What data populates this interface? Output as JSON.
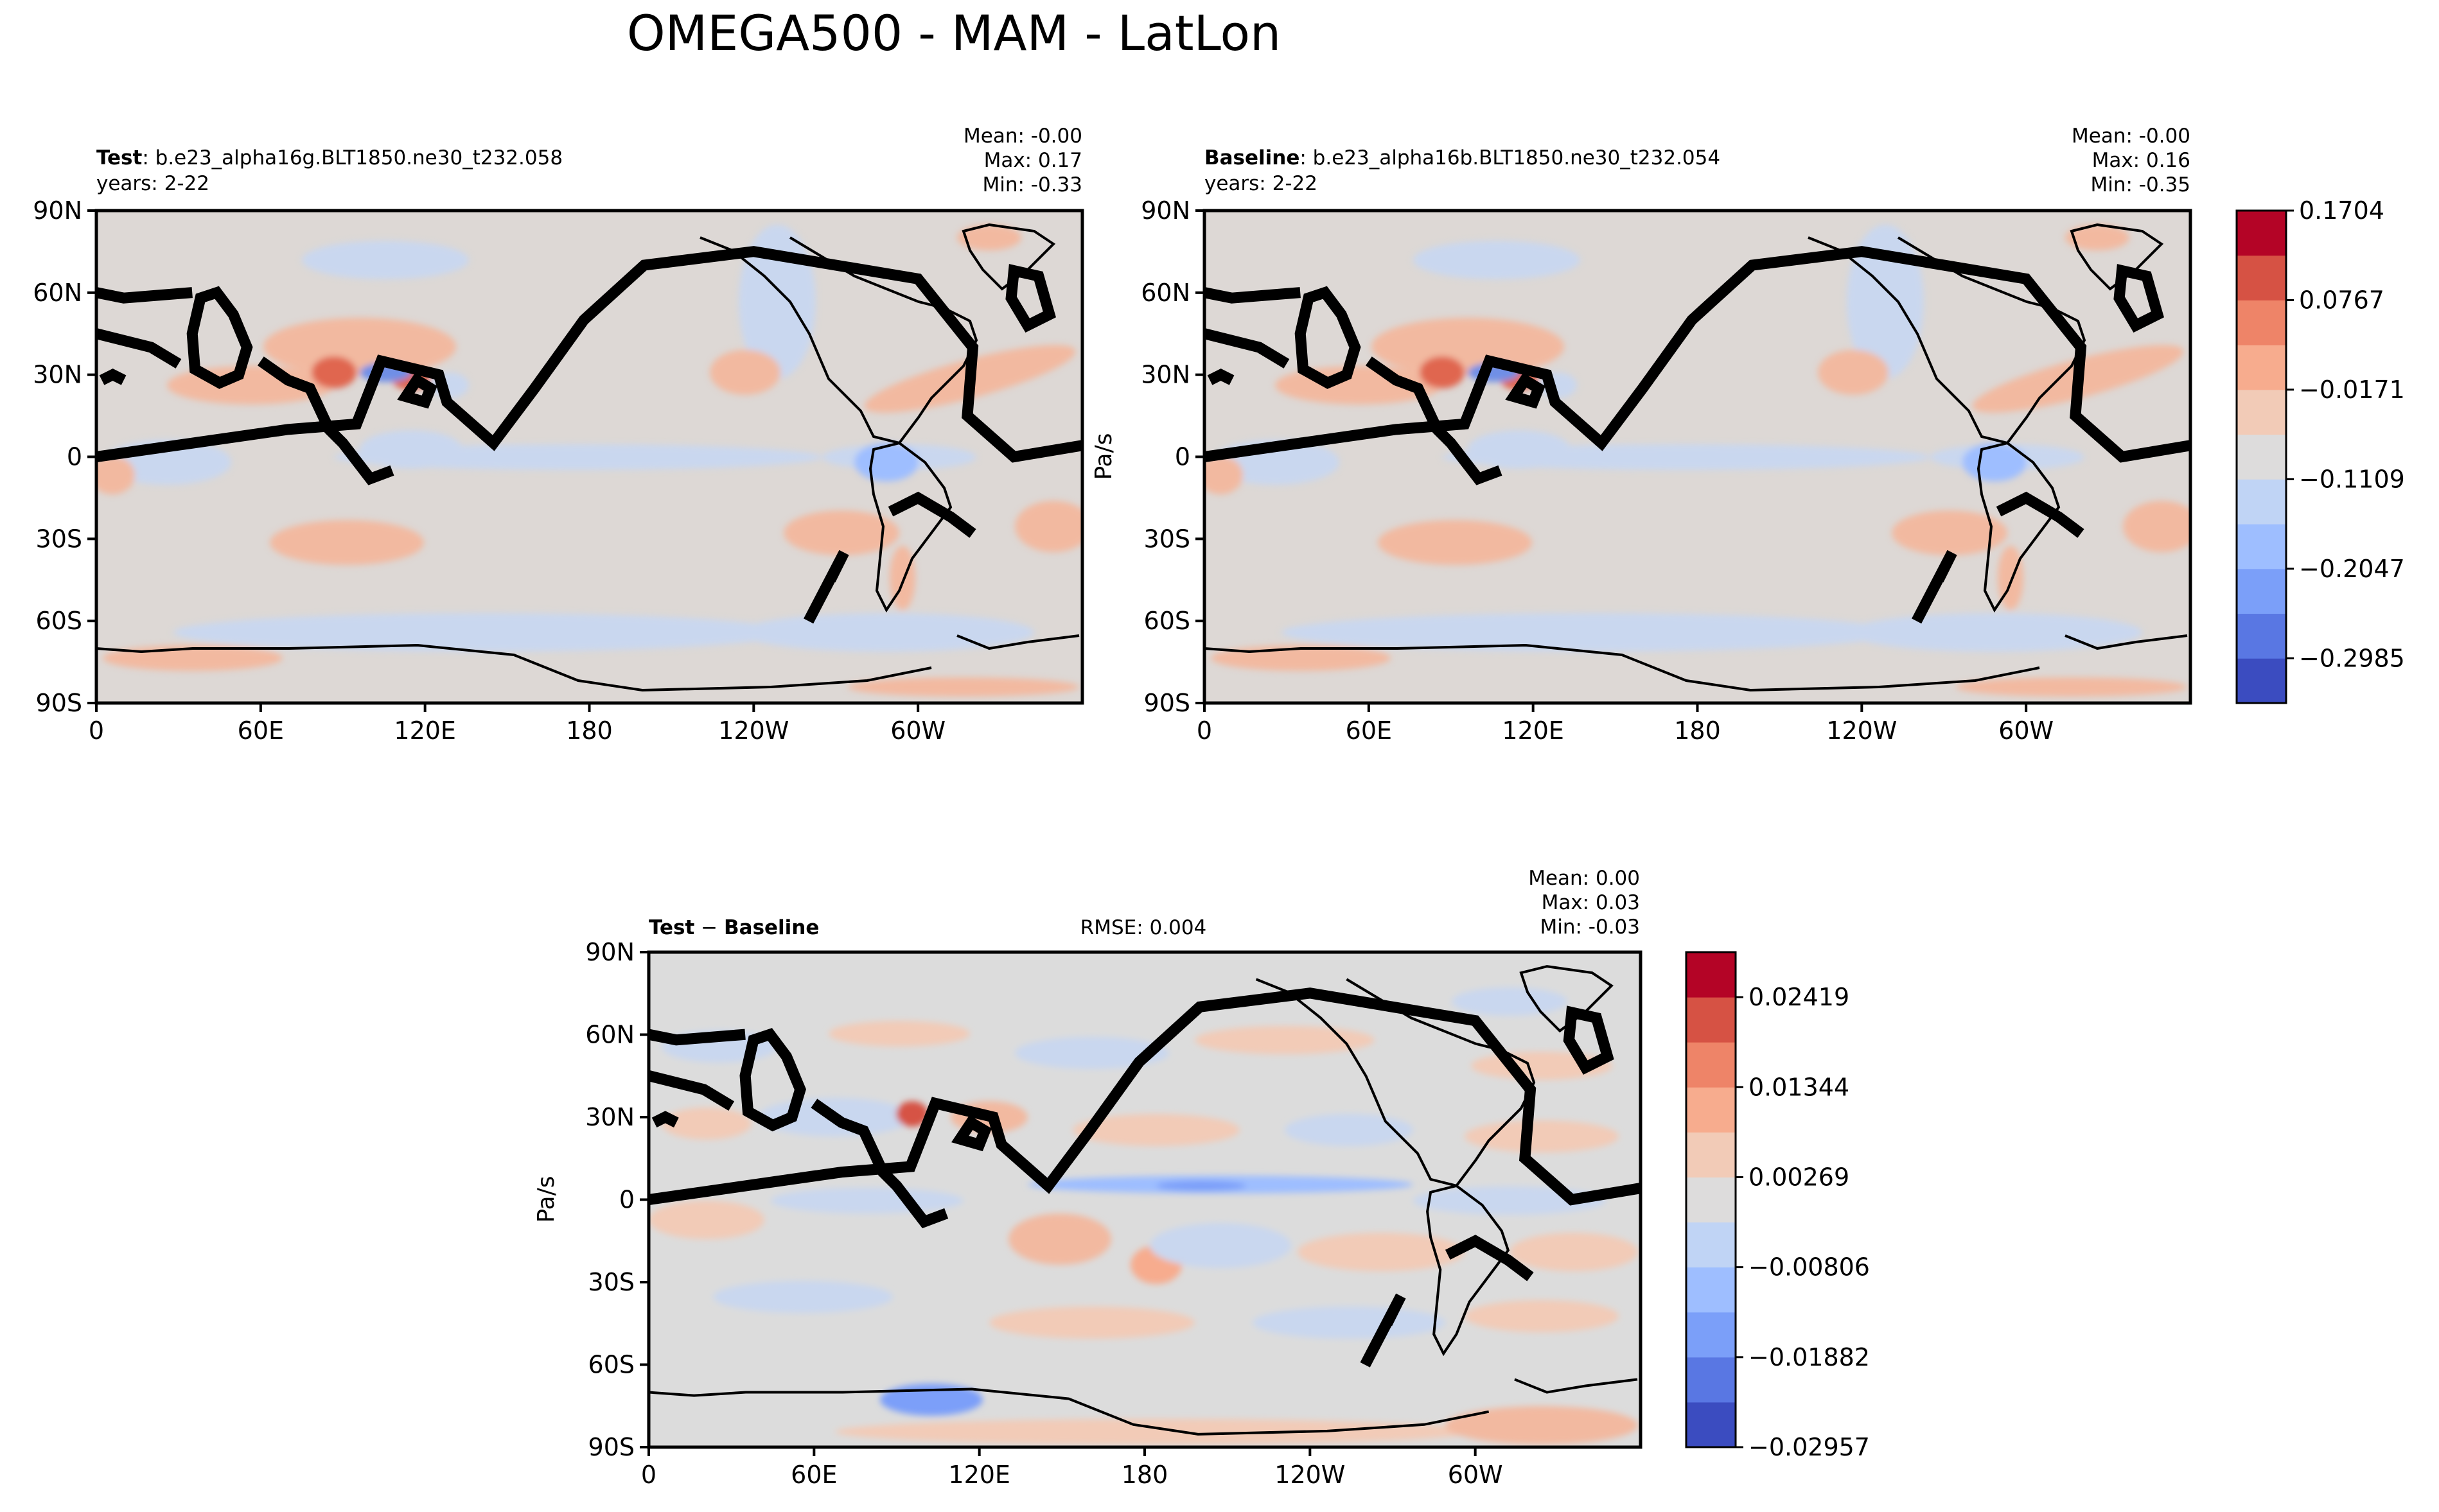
{
  "figure": {
    "title": "OMEGA500 - MAM - LatLon"
  },
  "chart_data": [
    {
      "type": "heatmap",
      "label_bold": "Test",
      "label_rest": ": b.e23_alpha16g.BLT1850.ne30_t232.058",
      "years": "years: 2-22",
      "stats": {
        "mean": "Mean: -0.00",
        "max": "Max:  0.17",
        "min": "Min: -0.33"
      },
      "rmse": "",
      "ylabel": "",
      "xlim": [
        0,
        360
      ],
      "ylim": [
        -90,
        90
      ],
      "x_ticks": [
        "0",
        "60E",
        "120E",
        "180",
        "120W",
        "60W"
      ],
      "y_ticks": [
        "90N",
        "60N",
        "30N",
        "0",
        "30S",
        "60S",
        "90S"
      ],
      "field": "OMEGA500 test",
      "colorbar": null
    },
    {
      "type": "heatmap",
      "label_bold": "Baseline",
      "label_rest": ": b.e23_alpha16b.BLT1850.ne30_t232.054",
      "years": "years: 2-22",
      "stats": {
        "mean": "Mean: -0.00",
        "max": "Max:  0.16",
        "min": "Min: -0.35"
      },
      "rmse": "",
      "ylabel": "Pa/s",
      "xlim": [
        0,
        360
      ],
      "ylim": [
        -90,
        90
      ],
      "x_ticks": [
        "0",
        "60E",
        "120E",
        "180",
        "120W",
        "60W"
      ],
      "y_ticks": [
        "90N",
        "60N",
        "30N",
        "0",
        "30S",
        "60S",
        "90S"
      ],
      "field": "OMEGA500 baseline",
      "colorbar": {
        "levels": 11,
        "tick_labels": [
          "0.1704",
          "0.0767",
          "−0.0171",
          "−0.1109",
          "−0.2047",
          "−0.2985"
        ],
        "colors": [
          "#3b4cc0",
          "#5977e3",
          "#7b9ff9",
          "#9ebeff",
          "#c0d4f5",
          "#dddcdc",
          "#f2cbb7",
          "#f7ac8e",
          "#ee8468",
          "#d65244",
          "#b40426"
        ]
      }
    },
    {
      "type": "heatmap",
      "label_bold_a": "Test",
      "label_sep": " − ",
      "label_bold_b": "Baseline",
      "rmse": "RMSE: 0.004",
      "stats": {
        "mean": "Mean:  0.00",
        "max": "Max:  0.03",
        "min": "Min: -0.03"
      },
      "ylabel": "Pa/s",
      "xlim": [
        0,
        360
      ],
      "ylim": [
        -90,
        90
      ],
      "x_ticks": [
        "0",
        "60E",
        "120E",
        "180",
        "120W",
        "60W"
      ],
      "y_ticks": [
        "90N",
        "60N",
        "30N",
        "0",
        "30S",
        "60S",
        "90S"
      ],
      "field": "OMEGA500 difference",
      "colorbar": {
        "levels": 11,
        "tick_labels": [
          "0.02419",
          "0.01344",
          "0.00269",
          "−0.00806",
          "−0.01882",
          "−0.02957"
        ],
        "colors": [
          "#3b4cc0",
          "#5977e3",
          "#7b9ff9",
          "#9ebeff",
          "#c0d4f5",
          "#dddcdc",
          "#f2cbb7",
          "#f7ac8e",
          "#ee8468",
          "#d65244",
          "#b40426"
        ]
      }
    }
  ],
  "colors": {
    "neutral_test": "#ddd8d5",
    "neutral_diff": "#dcdcdc",
    "positive": "#f2b9a0",
    "positive_strong": "#e0664f",
    "negative": "#c9d7ef",
    "negative_strong": "#6f8fe6",
    "coastline": "#000000"
  }
}
